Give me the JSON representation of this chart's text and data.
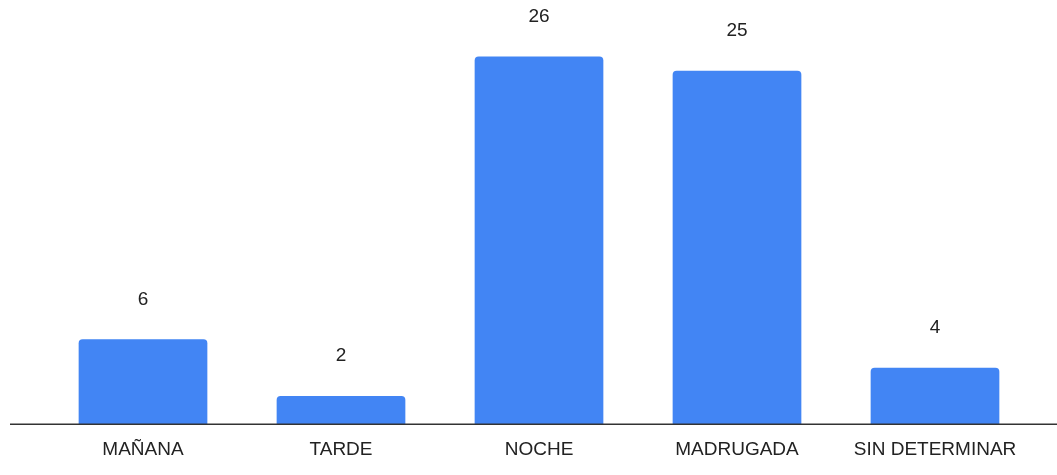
{
  "chart_data": {
    "type": "bar",
    "categories": [
      "MAÑANA",
      "TARDE",
      "NOCHE",
      "MADRUGADA",
      "SIN DETERMINAR"
    ],
    "values": [
      6,
      2,
      26,
      25,
      4
    ],
    "color": "#4285f4",
    "data_labels": true,
    "grid": false,
    "legend": false
  }
}
